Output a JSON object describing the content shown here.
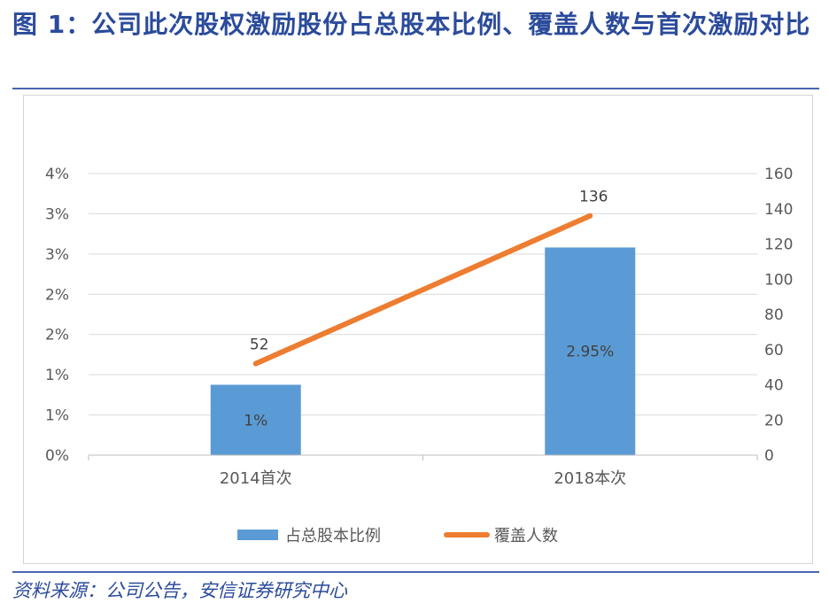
{
  "header": {
    "figure_label": "图",
    "figure_number": "1",
    "title": "：公司此次股权激励股份占总股本比例、覆盖人数与首次激励对比"
  },
  "footer": {
    "source": "资料来源：公司公告，安信证券研究中心"
  },
  "colors": {
    "bar": "#5b9bd5",
    "line": "#ed7d31",
    "title": "#2b4b9b"
  },
  "chart_data": {
    "type": "bar",
    "categories": [
      "2014首次",
      "2018本次"
    ],
    "series": [
      {
        "name": "占总股本比例",
        "type": "bar",
        "axis": "left",
        "values": [
          1.0,
          2.95
        ],
        "labels": [
          "1%",
          "2.95%"
        ]
      },
      {
        "name": "覆盖人数",
        "type": "line",
        "axis": "right",
        "values": [
          52,
          136
        ],
        "labels": [
          "52",
          "136"
        ]
      }
    ],
    "y_left": {
      "range": [
        0,
        4
      ],
      "tick_labels": [
        "0%",
        "1%",
        "1%",
        "2%",
        "2%",
        "3%",
        "3%",
        "4%"
      ]
    },
    "y_right": {
      "range": [
        0,
        160
      ],
      "tick_labels": [
        "0",
        "20",
        "40",
        "60",
        "80",
        "100",
        "120",
        "140",
        "160"
      ]
    },
    "grid": true,
    "legend": "bottom"
  }
}
